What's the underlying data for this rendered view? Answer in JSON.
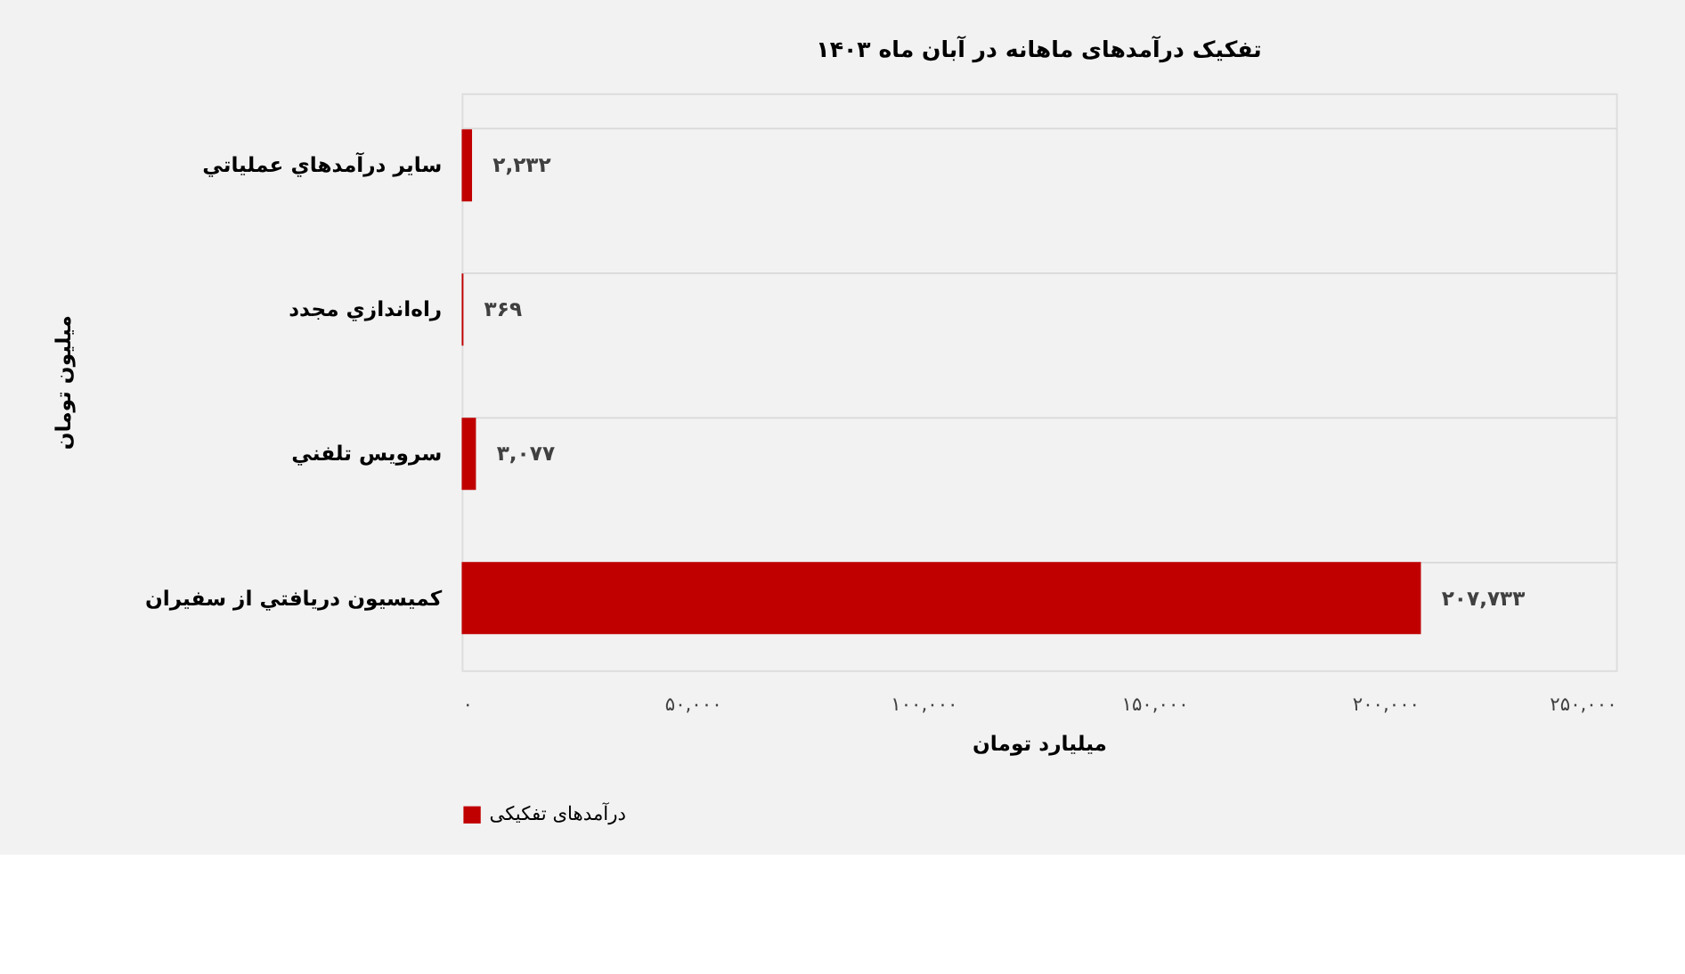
{
  "chart_data": {
    "type": "bar",
    "orientation": "horizontal",
    "title": "تفکیک درآمدهای ماهانه در آبان ماه ۱۴۰۳",
    "xlabel": "میلیارد تومان",
    "ylabel": "میلیون تومان",
    "categories": [
      "ساير درآمدهاي عملياتي",
      "راه‌اندازي مجدد",
      "سرويس تلفني",
      "کميسيون دريافتي از سفيران"
    ],
    "series": [
      {
        "name": "درآمدهای تفکیکی",
        "color": "#c00000",
        "values": [
          2232,
          369,
          3077,
          207733
        ],
        "value_labels": [
          "۲,۲۳۲",
          "۳۶۹",
          "۳,۰۷۷",
          "۲۰۷,۷۳۳"
        ]
      }
    ],
    "xlim": [
      0,
      250000
    ],
    "xticks": [
      {
        "value": 0,
        "label": "۰"
      },
      {
        "value": 50000,
        "label": "۵۰,۰۰۰"
      },
      {
        "value": 100000,
        "label": "۱۰۰,۰۰۰"
      },
      {
        "value": 150000,
        "label": "۱۵۰,۰۰۰"
      },
      {
        "value": 200000,
        "label": "۲۰۰,۰۰۰"
      },
      {
        "value": 250000,
        "label": "۲۵۰,۰۰۰"
      }
    ],
    "grid": "y",
    "legend": "bottom"
  }
}
